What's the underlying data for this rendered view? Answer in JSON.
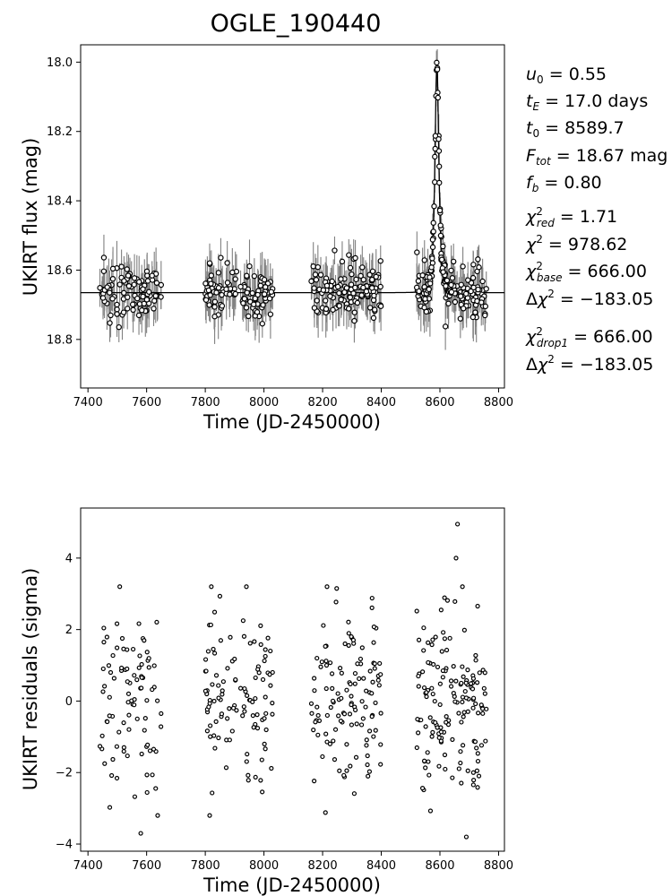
{
  "title": "OGLE_190440",
  "chart_data": [
    {
      "type": "scatter",
      "name": "lightcurve",
      "xlabel": "Time (JD-2450000)",
      "ylabel": "UKIRT flux (mag)",
      "xlim": [
        7375,
        8820
      ],
      "ylim": [
        18.94,
        17.95
      ],
      "y_inverted": true,
      "xticks": [
        7400,
        7600,
        7800,
        8000,
        8200,
        8400,
        8600,
        8800
      ],
      "yticks": [
        18.0,
        18.2,
        18.4,
        18.6,
        18.8
      ],
      "xtick_labels": [
        "7400",
        "7600",
        "7800",
        "8000",
        "8200",
        "8400",
        "8600",
        "8800"
      ],
      "ytick_labels": [
        "18.0",
        "18.2",
        "18.4",
        "18.6",
        "18.8"
      ],
      "model": {
        "baseline_mag": 18.665,
        "peak_mag": 18.0,
        "t0": 8589.7,
        "tE": 17.0,
        "u0": 0.55,
        "fb": 0.8
      },
      "seasons": [
        {
          "start": 7440,
          "end": 7650,
          "n": 90
        },
        {
          "start": 7800,
          "end": 8030,
          "n": 110
        },
        {
          "start": 8160,
          "end": 8400,
          "n": 120
        },
        {
          "start": 8520,
          "end": 8760,
          "n": 150
        }
      ],
      "scatter_sigma_mag": 0.04,
      "typical_error_mag": 0.05,
      "grid": false
    },
    {
      "type": "scatter",
      "name": "residuals",
      "xlabel": "Time (JD-2450000)",
      "ylabel": "UKIRT residuals (sigma)",
      "xlim": [
        7375,
        8820
      ],
      "ylim": [
        -4.2,
        5.4
      ],
      "xticks": [
        7400,
        7600,
        7800,
        8000,
        8200,
        8400,
        8600,
        8800
      ],
      "yticks": [
        -4,
        -2,
        0,
        2,
        4
      ],
      "xtick_labels": [
        "7400",
        "7600",
        "7800",
        "8000",
        "8200",
        "8400",
        "8600",
        "8800"
      ],
      "ytick_labels": [
        "−4",
        "−2",
        "0",
        "2",
        "4"
      ],
      "residual_sigma": 1.3,
      "outliers": [
        [
          8660,
          4.95
        ],
        [
          8655,
          4.0
        ],
        [
          8248,
          3.15
        ],
        [
          7580,
          -3.7
        ],
        [
          8690,
          -3.8
        ]
      ],
      "grid": false
    }
  ],
  "params": {
    "u0": "0.55",
    "tE": "17.0",
    "tE_unit": "days",
    "t0": "8589.7",
    "Ftot": "18.67",
    "Ftot_unit": "mag",
    "fb": "0.80",
    "chi2_red": "1.71",
    "chi2": "978.62",
    "chi2_base": "666.00",
    "dchi2": "−183.05",
    "chi2_drop1": "666.00",
    "dchi2_drop1": "−183.05"
  }
}
